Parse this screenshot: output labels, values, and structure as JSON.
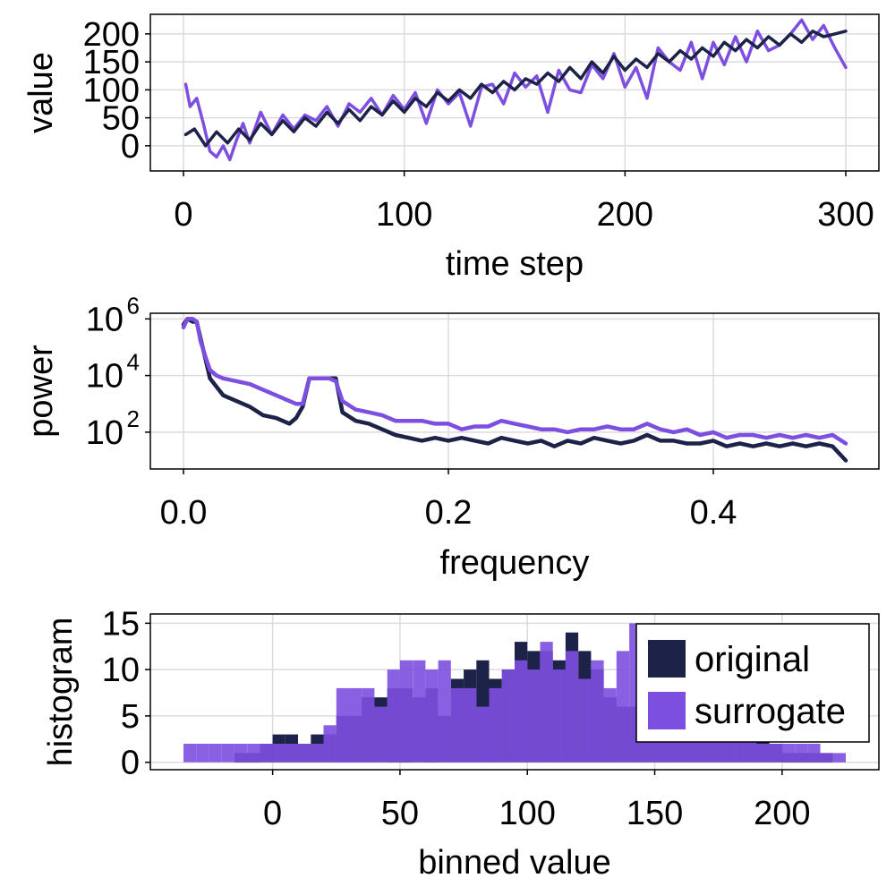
{
  "colors": {
    "original": "#1c2248",
    "surrogate": "#7d4fe0",
    "grid": "#dcdcdc"
  },
  "chart_data": [
    {
      "id": "timeseries",
      "type": "line",
      "xlabel": "time step",
      "ylabel": "value",
      "xlim": [
        -15,
        315
      ],
      "ylim": [
        -45,
        235
      ],
      "xticks": [
        0,
        100,
        200,
        300
      ],
      "yticks": [
        0,
        50,
        100,
        150,
        200
      ],
      "series": [
        {
          "name": "original",
          "x": [
            1,
            5,
            10,
            15,
            20,
            25,
            30,
            35,
            40,
            45,
            50,
            55,
            60,
            65,
            70,
            75,
            80,
            85,
            90,
            95,
            100,
            105,
            110,
            115,
            120,
            125,
            130,
            135,
            140,
            145,
            150,
            155,
            160,
            165,
            170,
            175,
            180,
            185,
            190,
            195,
            200,
            205,
            210,
            215,
            220,
            225,
            230,
            235,
            240,
            245,
            250,
            255,
            260,
            265,
            270,
            275,
            280,
            285,
            290,
            295,
            300
          ],
          "values": [
            20,
            30,
            0,
            25,
            5,
            30,
            10,
            40,
            20,
            45,
            25,
            50,
            35,
            60,
            40,
            65,
            45,
            70,
            55,
            80,
            60,
            85,
            70,
            95,
            80,
            100,
            85,
            110,
            95,
            115,
            100,
            120,
            110,
            130,
            115,
            140,
            120,
            150,
            130,
            160,
            135,
            155,
            140,
            165,
            150,
            170,
            155,
            175,
            160,
            185,
            170,
            190,
            175,
            195,
            180,
            200,
            185,
            205,
            195,
            200,
            205
          ]
        },
        {
          "name": "surrogate",
          "x": [
            1,
            3,
            6,
            9,
            12,
            15,
            18,
            21,
            24,
            27,
            30,
            35,
            40,
            45,
            50,
            55,
            60,
            65,
            70,
            75,
            80,
            85,
            90,
            95,
            100,
            105,
            110,
            115,
            120,
            125,
            130,
            135,
            140,
            145,
            150,
            155,
            160,
            165,
            170,
            175,
            180,
            185,
            190,
            195,
            200,
            205,
            210,
            215,
            220,
            225,
            230,
            235,
            240,
            245,
            250,
            255,
            260,
            265,
            270,
            275,
            280,
            285,
            290,
            295,
            300
          ],
          "values": [
            110,
            70,
            85,
            40,
            -10,
            -20,
            0,
            -25,
            10,
            40,
            5,
            60,
            20,
            55,
            30,
            55,
            45,
            70,
            35,
            75,
            60,
            85,
            55,
            90,
            65,
            95,
            40,
            100,
            75,
            95,
            35,
            105,
            110,
            75,
            130,
            105,
            125,
            60,
            135,
            100,
            95,
            145,
            120,
            165,
            105,
            140,
            85,
            175,
            150,
            135,
            185,
            120,
            185,
            145,
            195,
            150,
            205,
            170,
            180,
            200,
            225,
            190,
            215,
            175,
            140
          ]
        }
      ]
    },
    {
      "id": "spectrum",
      "type": "line",
      "xlabel": "frequency",
      "ylabel": "power",
      "yscale": "log10",
      "xlim": [
        -0.025,
        0.525
      ],
      "ylim": [
        0.7,
        6.2
      ],
      "xticks": [
        0.0,
        0.2,
        0.4
      ],
      "xtick_labels": [
        "0.0",
        "0.2",
        "0.4"
      ],
      "yticks": [
        2,
        4,
        6
      ],
      "ytick_labels": [
        "10",
        "10",
        "10"
      ],
      "ytick_exponents": [
        "2",
        "4",
        "6"
      ],
      "series": [
        {
          "name": "original",
          "x": [
            0.0,
            0.003,
            0.007,
            0.01,
            0.013,
            0.017,
            0.02,
            0.025,
            0.03,
            0.04,
            0.05,
            0.06,
            0.07,
            0.08,
            0.085,
            0.09,
            0.095,
            0.1,
            0.105,
            0.11,
            0.115,
            0.12,
            0.13,
            0.14,
            0.15,
            0.16,
            0.17,
            0.18,
            0.19,
            0.2,
            0.21,
            0.22,
            0.23,
            0.24,
            0.25,
            0.26,
            0.27,
            0.28,
            0.29,
            0.3,
            0.31,
            0.32,
            0.33,
            0.34,
            0.35,
            0.36,
            0.37,
            0.38,
            0.39,
            0.4,
            0.41,
            0.42,
            0.43,
            0.44,
            0.45,
            0.46,
            0.47,
            0.48,
            0.49,
            0.5
          ],
          "values": [
            5.8,
            6.0,
            5.9,
            5.9,
            5.3,
            4.5,
            3.9,
            3.6,
            3.3,
            3.1,
            2.9,
            2.6,
            2.5,
            2.3,
            2.5,
            2.9,
            3.9,
            3.9,
            3.9,
            3.9,
            3.9,
            2.7,
            2.4,
            2.3,
            2.1,
            1.9,
            1.8,
            1.7,
            1.8,
            1.7,
            1.8,
            1.7,
            1.6,
            1.8,
            1.7,
            1.6,
            1.7,
            1.5,
            1.7,
            1.6,
            1.8,
            1.7,
            1.6,
            1.7,
            1.9,
            1.7,
            1.7,
            1.6,
            1.6,
            1.7,
            1.5,
            1.6,
            1.5,
            1.6,
            1.5,
            1.6,
            1.5,
            1.6,
            1.5,
            1.0
          ]
        },
        {
          "name": "surrogate",
          "x": [
            0.0,
            0.003,
            0.007,
            0.01,
            0.013,
            0.017,
            0.02,
            0.025,
            0.03,
            0.04,
            0.05,
            0.06,
            0.07,
            0.08,
            0.085,
            0.09,
            0.095,
            0.1,
            0.105,
            0.11,
            0.115,
            0.12,
            0.13,
            0.14,
            0.15,
            0.16,
            0.17,
            0.18,
            0.19,
            0.2,
            0.21,
            0.22,
            0.23,
            0.24,
            0.25,
            0.26,
            0.27,
            0.28,
            0.29,
            0.3,
            0.31,
            0.32,
            0.33,
            0.34,
            0.35,
            0.36,
            0.37,
            0.38,
            0.39,
            0.4,
            0.41,
            0.42,
            0.43,
            0.44,
            0.45,
            0.46,
            0.47,
            0.48,
            0.49,
            0.5
          ],
          "values": [
            5.7,
            6.0,
            6.0,
            5.9,
            5.2,
            4.6,
            4.2,
            4.0,
            3.9,
            3.8,
            3.7,
            3.5,
            3.3,
            3.1,
            3.0,
            3.0,
            3.9,
            3.9,
            3.9,
            3.9,
            3.8,
            3.1,
            2.8,
            2.7,
            2.6,
            2.4,
            2.4,
            2.4,
            2.3,
            2.3,
            2.1,
            2.2,
            2.2,
            2.4,
            2.3,
            2.2,
            2.1,
            2.1,
            2.0,
            2.1,
            2.1,
            2.2,
            2.1,
            2.1,
            2.3,
            2.1,
            2.0,
            2.1,
            1.9,
            2.0,
            1.8,
            1.9,
            1.9,
            1.8,
            1.9,
            1.8,
            1.9,
            1.8,
            1.9,
            1.6
          ]
        }
      ]
    },
    {
      "id": "histogram",
      "type": "bar",
      "xlabel": "binned value",
      "ylabel": "histogram",
      "xlim": [
        -48,
        238
      ],
      "ylim": [
        -0.8,
        16
      ],
      "xticks": [
        0,
        50,
        100,
        150,
        200
      ],
      "yticks": [
        0,
        5,
        10,
        15
      ],
      "bin_width": 5,
      "legend": {
        "position": "top-right",
        "entries": [
          "original",
          "surrogate"
        ]
      },
      "series": [
        {
          "name": "original",
          "bin_starts": [
            -15,
            -10,
            -5,
            0,
            5,
            10,
            15,
            20,
            25,
            30,
            35,
            40,
            45,
            50,
            55,
            60,
            65,
            70,
            75,
            80,
            85,
            90,
            95,
            100,
            105,
            110,
            115,
            120,
            125,
            130,
            135,
            140,
            145,
            150,
            155,
            160,
            165,
            170,
            175,
            180,
            185,
            190,
            195,
            200,
            205,
            210,
            215
          ],
          "values": [
            1,
            1,
            2,
            3,
            3,
            2,
            3,
            3,
            5,
            5,
            7,
            7,
            8,
            8,
            7,
            8,
            5,
            9,
            10,
            11,
            9,
            10,
            13,
            12,
            12,
            11,
            14,
            12,
            10,
            7,
            6,
            6,
            5,
            5,
            6,
            4,
            3,
            5,
            4,
            3,
            3,
            3,
            2,
            1,
            1,
            1,
            1
          ]
        },
        {
          "name": "surrogate",
          "bin_starts": [
            -35,
            -30,
            -25,
            -20,
            -15,
            -10,
            -5,
            0,
            5,
            10,
            15,
            20,
            25,
            30,
            35,
            40,
            45,
            50,
            55,
            60,
            65,
            70,
            75,
            80,
            85,
            90,
            95,
            100,
            105,
            110,
            115,
            120,
            125,
            130,
            135,
            140,
            145,
            150,
            155,
            160,
            165,
            170,
            175,
            180,
            185,
            190,
            195,
            200,
            205,
            210,
            215,
            220
          ],
          "values": [
            2,
            2,
            2,
            2,
            2,
            2,
            2,
            2,
            2,
            2,
            2,
            4,
            8,
            8,
            8,
            6,
            10,
            11,
            11,
            10,
            11,
            8,
            8,
            6,
            8,
            10,
            11,
            10,
            13,
            10,
            12,
            9,
            11,
            8,
            12,
            15,
            9,
            9,
            11,
            10,
            7,
            7,
            5,
            3,
            3,
            2,
            2,
            2,
            2,
            2,
            1,
            1
          ]
        }
      ]
    }
  ]
}
